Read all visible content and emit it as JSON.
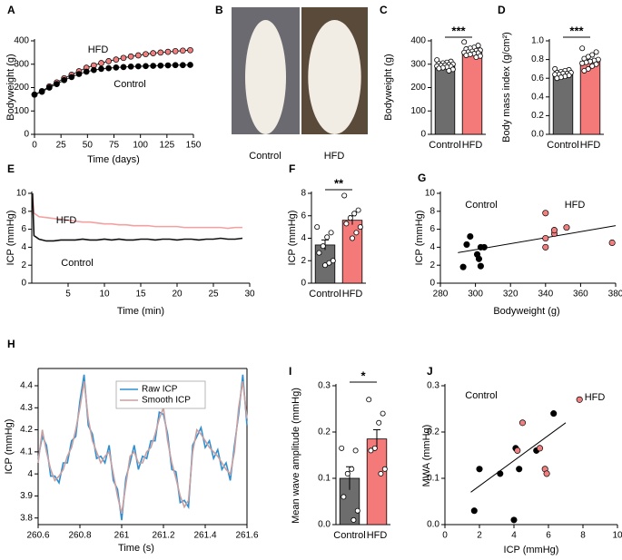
{
  "chart_data": [
    {
      "type": "line",
      "panel": "A",
      "xlabel": "Time (days)",
      "ylabel": "Bodyweight (g)",
      "x": [
        0,
        7,
        14,
        21,
        28,
        35,
        42,
        49,
        56,
        63,
        70,
        77,
        84,
        91,
        98,
        105,
        112,
        119,
        126,
        133,
        140,
        147
      ],
      "series": [
        {
          "name": "HFD",
          "color": "#f08080",
          "values": [
            170,
            185,
            205,
            222,
            240,
            255,
            270,
            285,
            295,
            305,
            313,
            320,
            327,
            333,
            338,
            343,
            347,
            350,
            353,
            356,
            358,
            360
          ]
        },
        {
          "name": "Control",
          "color": "#000000",
          "values": [
            170,
            182,
            200,
            215,
            232,
            245,
            258,
            268,
            275,
            280,
            283,
            286,
            288,
            290,
            291,
            292,
            293,
            294,
            295,
            296,
            296,
            297
          ]
        }
      ],
      "markers": true,
      "xlim": [
        0,
        150
      ],
      "xticks": [
        0,
        25,
        50,
        75,
        100,
        125,
        150
      ],
      "ylim": [
        0,
        400
      ],
      "yticks": [
        0,
        100,
        200,
        300,
        400
      ]
    },
    {
      "type": "image",
      "panel": "B",
      "categories": [
        "Control",
        "HFD"
      ]
    },
    {
      "type": "bar",
      "panel": "C",
      "ylabel": "Bodyweight (g)",
      "categories": [
        "Control",
        "HFD"
      ],
      "values": [
        295,
        355
      ],
      "errors": [
        5,
        5
      ],
      "colors": [
        "#6d6d6d",
        "#f47a7a"
      ],
      "significance": "***",
      "points": [
        [
          318,
          312,
          308,
          305,
          302,
          300,
          298,
          296,
          294,
          292,
          290,
          288,
          285,
          282,
          278,
          272
        ],
        [
          395,
          380,
          372,
          368,
          365,
          360,
          358,
          355,
          352,
          350,
          348,
          345,
          342,
          338,
          335,
          330
        ]
      ],
      "ylim": [
        0,
        400
      ],
      "yticks": [
        0,
        100,
        200,
        300,
        400
      ]
    },
    {
      "type": "bar",
      "panel": "D",
      "ylabel": "Body mass index (g/cm²)",
      "categories": [
        "Control",
        "HFD"
      ],
      "values": [
        0.65,
        0.78
      ],
      "errors": [
        0.01,
        0.015
      ],
      "colors": [
        "#6d6d6d",
        "#f47a7a"
      ],
      "significance": "***",
      "points": [
        [
          0.7,
          0.69,
          0.68,
          0.67,
          0.66,
          0.66,
          0.65,
          0.65,
          0.64,
          0.64,
          0.63,
          0.62,
          0.61,
          0.6
        ],
        [
          0.92,
          0.88,
          0.85,
          0.83,
          0.81,
          0.8,
          0.79,
          0.78,
          0.77,
          0.76,
          0.75,
          0.73,
          0.7,
          0.68
        ]
      ],
      "ylim": [
        0,
        1
      ],
      "yticks": [
        {
          "value": 0,
          "label": "0.0"
        },
        0.2,
        0.4,
        0.6,
        0.8,
        {
          "value": 1,
          "label": "1.0"
        }
      ]
    },
    {
      "type": "line",
      "panel": "E",
      "xlabel": "Time  (min)",
      "ylabel": "ICP (mmHg)",
      "x": [
        0.1,
        0.3,
        1,
        2,
        3,
        4,
        5,
        6,
        7,
        8,
        9,
        10,
        11,
        12,
        13,
        14,
        15,
        16,
        17,
        18,
        19,
        20,
        21,
        22,
        23,
        24,
        25,
        26,
        27,
        28,
        29
      ],
      "series": [
        {
          "name": "HFD",
          "color": "#f4a0a0",
          "values": [
            10,
            7.8,
            7.4,
            7.3,
            7.2,
            7.1,
            7.0,
            6.9,
            6.8,
            6.8,
            6.7,
            6.6,
            6.6,
            6.5,
            6.5,
            6.4,
            6.4,
            6.4,
            6.3,
            6.3,
            6.3,
            6.3,
            6.2,
            6.2,
            6.2,
            6.2,
            6.2,
            6.2,
            6.1,
            6.2,
            6.2
          ]
        },
        {
          "name": "Control",
          "color": "#111111",
          "values": [
            10,
            5.3,
            4.9,
            4.7,
            4.7,
            4.8,
            4.8,
            4.8,
            4.9,
            4.8,
            4.8,
            4.9,
            4.8,
            4.9,
            4.8,
            4.8,
            4.9,
            4.9,
            4.8,
            4.9,
            4.9,
            4.8,
            4.9,
            4.9,
            4.8,
            4.9,
            4.9,
            5.0,
            4.9,
            4.9,
            5.0
          ]
        }
      ],
      "xlim": [
        0,
        30
      ],
      "xticks": [
        5,
        10,
        15,
        20,
        25,
        30
      ],
      "ylim": [
        0,
        10
      ],
      "yticks": [
        0,
        2,
        4,
        6,
        8,
        10
      ]
    },
    {
      "type": "bar",
      "panel": "F",
      "ylabel": "ICP (mmHg)",
      "categories": [
        "Control",
        "HFD"
      ],
      "values": [
        3.4,
        5.6
      ],
      "errors": [
        0.45,
        0.4
      ],
      "colors": [
        "#6d6d6d",
        "#f47a7a"
      ],
      "significance": "**",
      "points": [
        [
          5.0,
          4.5,
          4.1,
          3.3,
          2.7,
          2.0,
          1.8,
          1.6
        ],
        [
          7.8,
          6.5,
          6.2,
          5.8,
          5.3,
          5.0,
          4.5,
          4.0
        ]
      ],
      "ylim": [
        0,
        8
      ],
      "yticks": [
        0,
        2,
        4,
        6,
        8
      ]
    },
    {
      "type": "scatter",
      "panel": "G",
      "xlabel": "Bodyweight (g)",
      "ylabel": "ICP (mmHg)",
      "series": [
        {
          "name": "Control",
          "color": "#000000",
          "x": [
            293,
            295,
            297,
            301,
            302,
            303,
            303,
            305
          ],
          "values": [
            1.8,
            4.3,
            5.2,
            3.2,
            2.7,
            1.9,
            4.0,
            4.0
          ]
        },
        {
          "name": "HFD",
          "color": "#f08080",
          "x": [
            340,
            340,
            340,
            345,
            345,
            352,
            378
          ],
          "values": [
            7.8,
            4.0,
            5.0,
            5.5,
            5.9,
            6.2,
            4.5
          ]
        }
      ],
      "trendline": {
        "x": [
          290,
          380
        ],
        "y": [
          3.4,
          6.4
        ]
      },
      "xlim": [
        280,
        380
      ],
      "xticks": [
        280,
        300,
        320,
        340,
        360,
        380
      ],
      "ylim": [
        0,
        10
      ],
      "yticks": [
        0,
        2,
        4,
        6,
        8,
        10
      ]
    },
    {
      "type": "line",
      "panel": "H",
      "xlabel": "Time (s)",
      "ylabel": "ICP (mmHg)",
      "legend": "top",
      "x": [
        260.6,
        260.62,
        260.64,
        260.66,
        260.68,
        260.7,
        260.72,
        260.74,
        260.76,
        260.78,
        260.8,
        260.82,
        260.84,
        260.86,
        260.88,
        260.9,
        260.92,
        260.94,
        260.96,
        260.98,
        261,
        261.02,
        261.04,
        261.06,
        261.08,
        261.1,
        261.12,
        261.14,
        261.16,
        261.18,
        261.2,
        261.22,
        261.24,
        261.26,
        261.28,
        261.3,
        261.32,
        261.34,
        261.36,
        261.38,
        261.4,
        261.42,
        261.44,
        261.46,
        261.48,
        261.5,
        261.52,
        261.54,
        261.56,
        261.58,
        261.6
      ],
      "series": [
        {
          "name": "Raw ICP",
          "color": "#2f8fd0",
          "values": [
            4.07,
            4.17,
            4.13,
            3.99,
            3.99,
            3.96,
            4.05,
            4.05,
            4.15,
            4.17,
            4.33,
            4.45,
            4.22,
            4.18,
            4.07,
            4.08,
            4.05,
            4.13,
            3.97,
            3.93,
            3.79,
            3.98,
            4.05,
            4.13,
            4.02,
            4.08,
            4.07,
            4.15,
            4.15,
            4.28,
            4.27,
            4.18,
            4.02,
            4.01,
            3.87,
            3.88,
            3.85,
            4.13,
            4.17,
            4.21,
            4.12,
            4.15,
            4.07,
            4.11,
            4.02,
            4.05,
            3.97,
            4.13,
            4.27,
            4.45,
            4.22
          ]
        },
        {
          "name": "Smooth ICP",
          "color": "#c9a0a0",
          "values": [
            4.05,
            4.2,
            4.1,
            4.02,
            3.97,
            3.99,
            4.02,
            4.08,
            4.12,
            4.2,
            4.3,
            4.42,
            4.25,
            4.15,
            4.1,
            4.05,
            4.08,
            4.1,
            4.0,
            3.9,
            3.82,
            3.95,
            4.08,
            4.1,
            4.05,
            4.05,
            4.1,
            4.12,
            4.18,
            4.25,
            4.3,
            4.15,
            4.05,
            3.98,
            3.9,
            3.85,
            3.88,
            4.1,
            4.2,
            4.18,
            4.15,
            4.12,
            4.1,
            4.08,
            4.05,
            4.02,
            4.0,
            4.1,
            4.3,
            4.42,
            4.25
          ]
        }
      ],
      "xlim": [
        260.6,
        261.6
      ],
      "xticks": [
        260.6,
        260.8,
        261,
        261.2,
        261.4,
        261.6
      ],
      "ylim": [
        3.77,
        4.47
      ],
      "yticks": [
        3.8,
        3.9,
        4,
        4.1,
        4.2,
        4.3,
        4.4
      ]
    },
    {
      "type": "bar",
      "panel": "I",
      "ylabel": "Mean wave amplitude (mmHg)",
      "categories": [
        "Control",
        "HFD"
      ],
      "values": [
        0.1,
        0.185
      ],
      "errors": [
        0.025,
        0.02
      ],
      "colors": [
        "#6d6d6d",
        "#f47a7a"
      ],
      "significance": "*",
      "points": [
        [
          0.165,
          0.16,
          0.12,
          0.11,
          0.06,
          0.03,
          0.01
        ],
        [
          0.27,
          0.24,
          0.22,
          0.165,
          0.16,
          0.12,
          0.11
        ]
      ],
      "ylim": [
        0,
        0.3
      ],
      "yticks": [
        {
          "value": 0,
          "label": "0.0"
        },
        0.1,
        0.2,
        0.3
      ]
    },
    {
      "type": "scatter",
      "panel": "J",
      "xlabel": "ICP (mmHg)",
      "ylabel": "MWA (mmHg)",
      "series": [
        {
          "name": "Control",
          "color": "#000000",
          "x": [
            1.7,
            2.0,
            3.2,
            4.0,
            4.3,
            4.1,
            5.3,
            6.3
          ],
          "values": [
            0.03,
            0.12,
            0.11,
            0.01,
            0.12,
            0.165,
            0.16,
            0.24
          ]
        },
        {
          "name": "HFD",
          "color": "#f08080",
          "x": [
            4.5,
            4.2,
            5.5,
            5.8,
            5.9,
            7.8
          ],
          "values": [
            0.22,
            0.16,
            0.165,
            0.12,
            0.11,
            0.27
          ]
        }
      ],
      "trendline": {
        "x": [
          1.5,
          7
        ],
        "y": [
          0.07,
          0.22
        ]
      },
      "xlim": [
        0,
        10
      ],
      "xticks": [
        0,
        2,
        4,
        6,
        8,
        10
      ],
      "ylim": [
        0,
        0.3
      ],
      "yticks": [
        {
          "value": 0,
          "label": "0.0"
        },
        0.1,
        0.2,
        0.3
      ]
    }
  ]
}
